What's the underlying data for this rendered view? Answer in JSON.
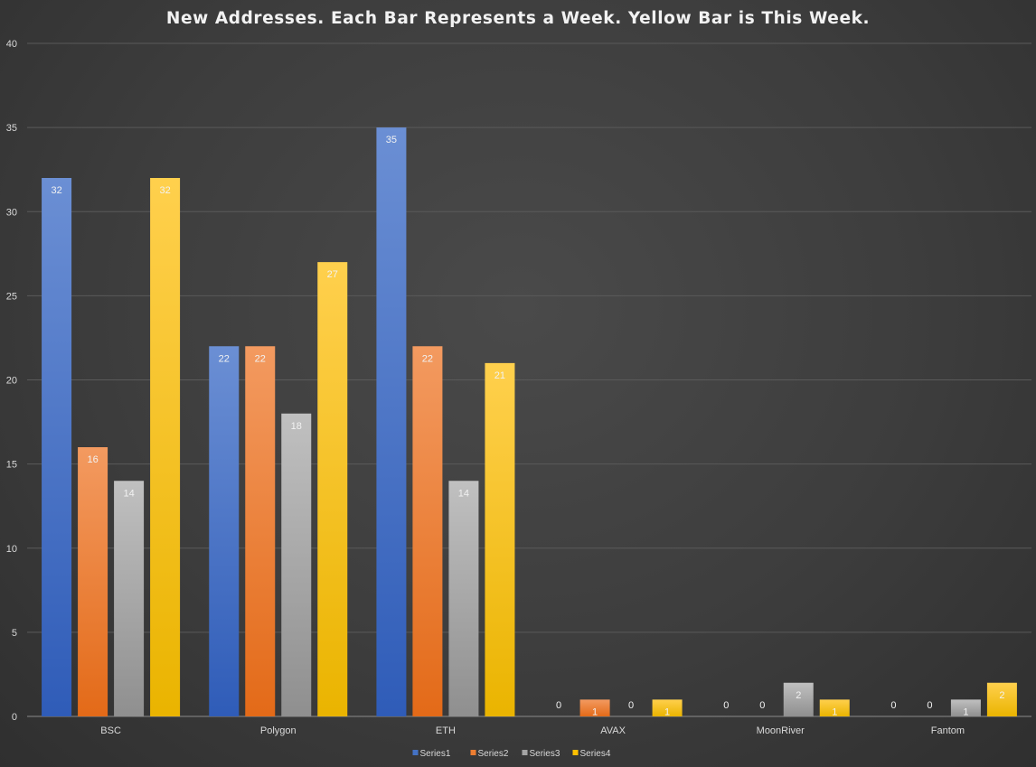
{
  "chart_data": {
    "type": "bar",
    "title": "New Addresses. Each Bar Represents a Week. Yellow Bar is This Week.",
    "xlabel": "",
    "ylabel": "",
    "categories": [
      "BSC",
      "Polygon",
      "ETH",
      "AVAX",
      "MoonRiver",
      "Fantom"
    ],
    "series": [
      {
        "name": "Series1",
        "values": [
          32,
          22,
          35,
          0,
          0,
          0
        ],
        "color": "#4472c4"
      },
      {
        "name": "Series2",
        "values": [
          16,
          22,
          22,
          1,
          0,
          0
        ],
        "color": "#ed7d31"
      },
      {
        "name": "Series3",
        "values": [
          14,
          18,
          14,
          0,
          2,
          1
        ],
        "color": "#a5a5a5"
      },
      {
        "name": "Series4",
        "values": [
          32,
          27,
          21,
          1,
          1,
          2
        ],
        "color": "#ffc000"
      }
    ],
    "ylim": [
      0,
      40
    ],
    "yticks": [
      0,
      5,
      10,
      15,
      20,
      25,
      30,
      35,
      40
    ],
    "grid": true,
    "data_labels": true,
    "legend_position": "bottom"
  }
}
